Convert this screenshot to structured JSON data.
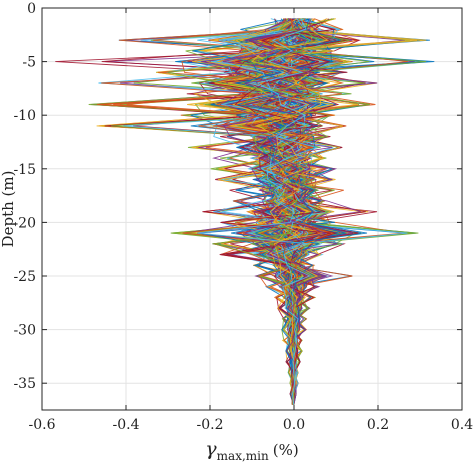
{
  "chart_data": {
    "type": "line",
    "title": "",
    "xlabel_symbol": "γ",
    "xlabel_subscript": "max,min",
    "xlabel_unit": "(%)",
    "ylabel": "Depth (m)",
    "xlim": [
      -0.6,
      0.4
    ],
    "ylim": [
      -37.5,
      0
    ],
    "xticks": [
      -0.6,
      -0.4,
      -0.2,
      0.0,
      0.2,
      0.4
    ],
    "xtick_labels": [
      "-0.6",
      "-0.4",
      "-0.2",
      "0.0",
      "0.2",
      "0.4"
    ],
    "yticks": [
      0,
      -5,
      -10,
      -15,
      -20,
      -25,
      -30,
      -35
    ],
    "ytick_labels": [
      "0",
      "-5",
      "-10",
      "-15",
      "-20",
      "-25",
      "-30",
      "-35"
    ],
    "grid": true,
    "depths": [
      -1,
      -2,
      -3,
      -4,
      -5,
      -6,
      -7,
      -8,
      -9,
      -10,
      -11,
      -12,
      -13,
      -14,
      -15,
      -16,
      -17,
      -18,
      -19,
      -20,
      -21,
      -22,
      -23,
      -24,
      -25,
      -26,
      -27,
      -28,
      -29,
      -30,
      -31,
      -32,
      -33,
      -34,
      -35,
      -36,
      -37
    ],
    "envelope_min": [
      -0.06,
      -0.14,
      -0.44,
      -0.26,
      -0.6,
      -0.33,
      -0.5,
      -0.26,
      -0.52,
      -0.27,
      -0.5,
      -0.2,
      -0.28,
      -0.2,
      -0.22,
      -0.19,
      -0.17,
      -0.15,
      -0.22,
      -0.18,
      -0.3,
      -0.2,
      -0.2,
      -0.1,
      -0.1,
      -0.07,
      -0.05,
      -0.04,
      -0.03,
      -0.03,
      -0.03,
      -0.02,
      -0.02,
      -0.015,
      -0.01,
      -0.01,
      -0.005
    ],
    "envelope_max": [
      0.1,
      0.12,
      0.33,
      0.1,
      0.35,
      0.13,
      0.22,
      0.14,
      0.2,
      0.1,
      0.13,
      0.09,
      0.12,
      0.08,
      0.1,
      0.1,
      0.12,
      0.08,
      0.2,
      0.1,
      0.33,
      0.12,
      0.07,
      0.05,
      0.17,
      0.06,
      0.05,
      0.04,
      0.03,
      0.03,
      0.02,
      0.02,
      0.015,
      0.01,
      0.01,
      0.005,
      0.0
    ],
    "series_count": 300,
    "palette": [
      "#0072BD",
      "#D95319",
      "#EDB120",
      "#7E2F8E",
      "#77AC30",
      "#4DBEEE",
      "#A2142F"
    ]
  }
}
